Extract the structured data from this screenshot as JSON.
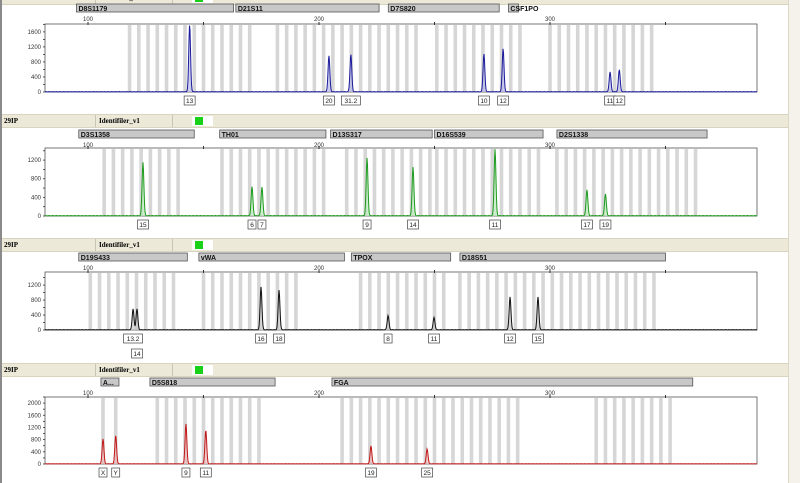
{
  "panel_header": {
    "sample": "29IP",
    "panel": "Identifiler_v1",
    "status_color": "#18d018"
  },
  "chart_data": [
    {
      "type": "line",
      "dye": "blue",
      "color": "#1a1a9a",
      "fill": "#b8b8e8",
      "xlabel": "",
      "ylabel": "",
      "x_ticks": [
        100,
        200,
        300
      ],
      "xlim": [
        81,
        390
      ],
      "y_ticks": [
        0,
        400,
        800,
        1200,
        1600
      ],
      "ylim": [
        0,
        1810
      ],
      "grid": false,
      "loci": [
        {
          "name": "D8S1179",
          "range": [
            95,
            163
          ],
          "bins": [
            118,
            170
          ]
        },
        {
          "name": "D21S11",
          "range": [
            164,
            226
          ],
          "bins": [
            182,
            244
          ]
        },
        {
          "name": "D7S820",
          "range": [
            230,
            278
          ],
          "bins": [
            251,
            287
          ]
        },
        {
          "name": "CSF1PO",
          "range": [
            282,
            248
          ],
          "bins": [
            300,
            347
          ]
        }
      ],
      "peaks": [
        {
          "allele": "13",
          "size": 144,
          "height": 1780
        },
        {
          "allele": "20",
          "size": 204.3,
          "height": 960
        },
        {
          "allele": "31.2",
          "size": 213.8,
          "height": 1000
        },
        {
          "allele": "10",
          "size": 271.4,
          "height": 1010
        },
        {
          "allele": "12",
          "size": 279.7,
          "height": 1150
        },
        {
          "allele": "11",
          "size": 326,
          "height": 530
        },
        {
          "allele": "12",
          "size": 330,
          "height": 590
        }
      ]
    },
    {
      "type": "line",
      "dye": "green",
      "color": "#1e9a1e",
      "fill": "#b8e8b8",
      "xlabel": "",
      "ylabel": "",
      "x_ticks": [
        100,
        200,
        300
      ],
      "xlim": [
        81,
        390
      ],
      "y_ticks": [
        0,
        400,
        800,
        1200
      ],
      "ylim": [
        0,
        1460
      ],
      "grid": false,
      "loci": [
        {
          "name": "D3S1358",
          "range": [
            96,
            146
          ],
          "bins": [
            107,
            141
          ]
        },
        {
          "name": "TH01",
          "range": [
            157,
            203
          ],
          "bins": [
            158,
            202
          ]
        },
        {
          "name": "D13S317",
          "range": [
            205,
            249
          ],
          "bins": [
            212,
            248
          ]
        },
        {
          "name": "D16S539",
          "range": [
            250,
            297
          ],
          "bins": [
            251,
            297
          ]
        },
        {
          "name": "D2S1338",
          "range": [
            303,
            368
          ],
          "bins": [
            303,
            364
          ]
        }
      ],
      "peaks": [
        {
          "allele": "15",
          "size": 123.8,
          "height": 1150
        },
        {
          "allele": "6",
          "size": 171,
          "height": 620
        },
        {
          "allele": "7",
          "size": 175.3,
          "height": 620
        },
        {
          "allele": "9",
          "size": 220.8,
          "height": 1240
        },
        {
          "allele": "14",
          "size": 240.7,
          "height": 1050
        },
        {
          "allele": "11",
          "size": 276.2,
          "height": 1430
        },
        {
          "allele": "17",
          "size": 316,
          "height": 560
        },
        {
          "allele": "19",
          "size": 324,
          "height": 470
        }
      ]
    },
    {
      "type": "line",
      "dye": "yellow",
      "color": "#111111",
      "fill": "#c8c8c8",
      "xlabel": "",
      "ylabel": "",
      "x_ticks": [
        100,
        200,
        300
      ],
      "xlim": [
        81,
        390
      ],
      "y_ticks": [
        0,
        400,
        800,
        1200
      ],
      "ylim": [
        0,
        1550
      ],
      "grid": false,
      "loci": [
        {
          "name": "D19S433",
          "range": [
            96,
            143
          ],
          "bins": [
            101,
            140
          ]
        },
        {
          "name": "vWA",
          "range": [
            148,
            211
          ],
          "bins": [
            150,
            192
          ]
        },
        {
          "name": "TPOX",
          "range": [
            214,
            257
          ],
          "bins": [
            218,
            254
          ]
        },
        {
          "name": "D18S51",
          "range": [
            261,
            350
          ],
          "bins": [
            261,
            345
          ]
        }
      ],
      "peaks": [
        {
          "allele": "13.2",
          "size": 119.5,
          "height": 560
        },
        {
          "allele": "14",
          "size": 121.2,
          "height": 560,
          "second_row": true
        },
        {
          "allele": "16",
          "size": 174.9,
          "height": 1150
        },
        {
          "allele": "18",
          "size": 182.7,
          "height": 1060
        },
        {
          "allele": "8",
          "size": 229.9,
          "height": 380
        },
        {
          "allele": "11",
          "size": 249.8,
          "height": 330
        },
        {
          "allele": "12",
          "size": 282.7,
          "height": 880
        },
        {
          "allele": "15",
          "size": 294.8,
          "height": 880
        }
      ]
    },
    {
      "type": "line",
      "dye": "red",
      "color": "#c01818",
      "fill": "#f0b8b8",
      "xlabel": "",
      "ylabel": "",
      "x_ticks": [
        100,
        200,
        300
      ],
      "xlim": [
        81,
        390
      ],
      "y_ticks": [
        0,
        400,
        800,
        1200,
        1600,
        2000
      ],
      "ylim": [
        0,
        2200
      ],
      "grid": false,
      "loci": [
        {
          "name": "A...",
          "range": [
            105.6,
            113.4
          ],
          "bins": [
            106.5,
            112
          ],
          "bin_step": 5.5
        },
        {
          "name": "D5S818",
          "range": [
            126.8,
            181
          ],
          "bins": [
            130,
            177
          ]
        },
        {
          "name": "FGA",
          "range": [
            205.6,
            361.8
          ],
          "bins": [
            210,
            286
          ],
          "bins2": [
            320,
            355
          ]
        }
      ],
      "peaks": [
        {
          "allele": "X",
          "size": 106.5,
          "height": 820
        },
        {
          "allele": "Y",
          "size": 112,
          "height": 920
        },
        {
          "allele": "9",
          "size": 142.4,
          "height": 1310
        },
        {
          "allele": "11",
          "size": 151,
          "height": 1110
        },
        {
          "allele": "19",
          "size": 222.5,
          "height": 590
        },
        {
          "allele": "25",
          "size": 246.8,
          "height": 490
        }
      ]
    }
  ]
}
